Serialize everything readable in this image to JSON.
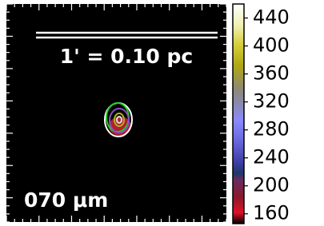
{
  "chart_data": {
    "type": "image",
    "scale_label": "1' = 0.10 pc",
    "band_label": "070 μm",
    "colorbar": {
      "ylim": [
        146,
        460
      ],
      "yticks": [
        160,
        200,
        240,
        280,
        320,
        360,
        400,
        440
      ]
    }
  }
}
